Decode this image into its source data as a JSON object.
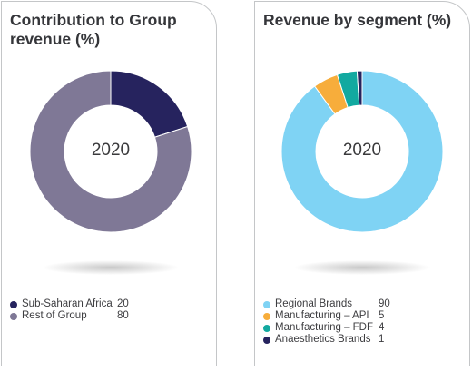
{
  "chart_data": [
    {
      "type": "pie",
      "variant": "donut",
      "title": "Contribution to Group revenue (%)",
      "center_label": "2020",
      "categories": [
        "Sub-Saharan Africa",
        "Rest of Group"
      ],
      "values": [
        20,
        80
      ],
      "colors": [
        "#26235e",
        "#7f7896"
      ],
      "legend_position": "bottom-left"
    },
    {
      "type": "pie",
      "variant": "donut",
      "title": "Revenue by segment (%)",
      "center_label": "2020",
      "categories": [
        "Regional Brands",
        "Manufacturing – API",
        "Manufacturing – FDF",
        "Anaesthetics Brands"
      ],
      "values": [
        90,
        5,
        4,
        1
      ],
      "colors": [
        "#7fd3f4",
        "#f7ad3b",
        "#12a9a0",
        "#26235e"
      ],
      "legend_position": "bottom-left"
    }
  ]
}
